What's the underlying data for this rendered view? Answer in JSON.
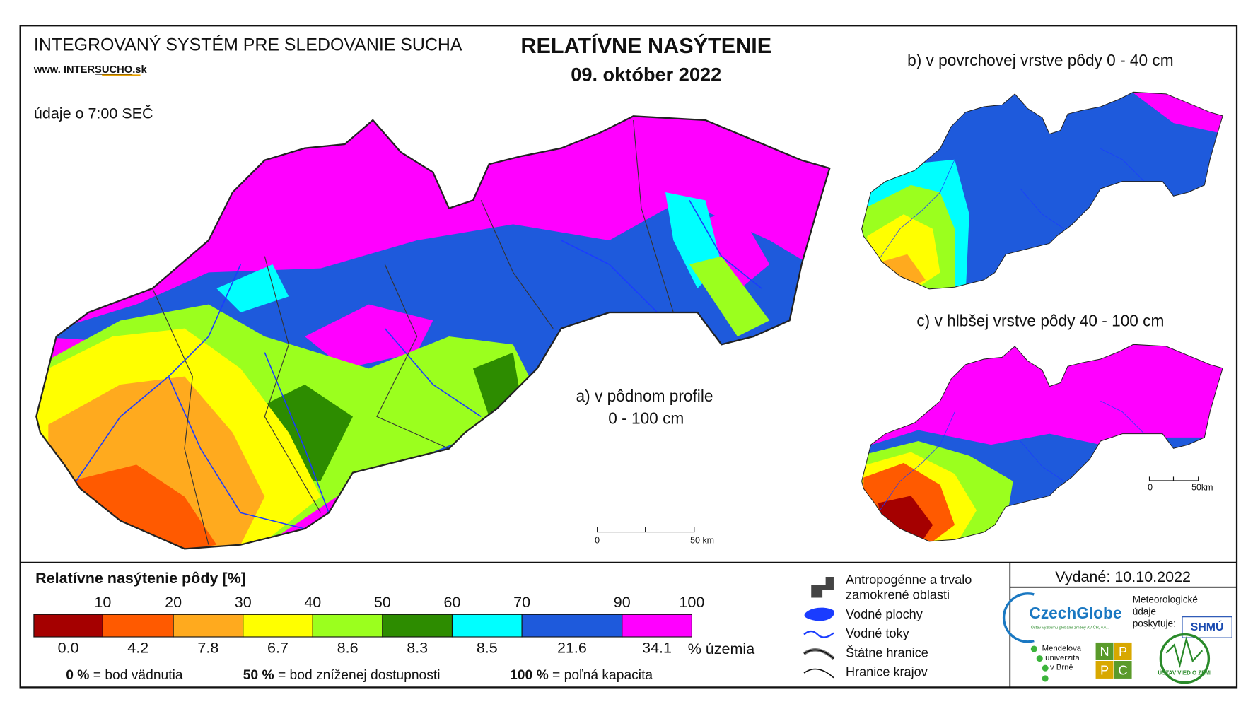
{
  "header": {
    "system": "INTEGROVANÝ SYSTÉM PRE SLEDOVANIE SUCHA",
    "web_prefix": "www. INTER",
    "web_mid": "SUCHO",
    "web_suffix": ".sk",
    "time_note": "údaje o 7:00 SEČ",
    "title": "RELATÍVNE NASÝTENIE",
    "date": "09. október 2022"
  },
  "maps": {
    "a_label_1": "a) v pôdnom profile",
    "a_label_2": "0 - 100 cm",
    "b_label": "b) v povrchovej vrstve pôdy 0 - 40 cm",
    "c_label": "c) v hlbšej vrstve pôdy 40 - 100 cm",
    "scale_a": [
      "0",
      "50 km"
    ],
    "scale_c": [
      "0",
      "50km"
    ]
  },
  "legend": {
    "title": "Relatívne nasýtenie pôdy [%]",
    "thresholds": [
      "10",
      "20",
      "30",
      "40",
      "50",
      "60",
      "70",
      "90",
      "100"
    ],
    "colors": [
      "#a50000",
      "#ff5a00",
      "#ffaa1e",
      "#ffff00",
      "#9bff1e",
      "#2d8c00",
      "#00ffff",
      "#1e5adc",
      "#ff00ff"
    ],
    "shares": [
      "0.0",
      "4.2",
      "7.8",
      "6.7",
      "8.6",
      "8.3",
      "8.5",
      "21.6",
      "34.1"
    ],
    "share_unit": "% územia",
    "notes": [
      {
        "value": "0 %",
        "text": "= bod vädnutia"
      },
      {
        "value": "50 %",
        "text": "= bod zníženej dostupnosti"
      },
      {
        "value": "100 %",
        "text": "= poľná kapacita"
      }
    ]
  },
  "symbols": [
    [
      "Antropogénne a trvalo",
      "zamokrené oblasti"
    ],
    [
      "Vodné plochy"
    ],
    [
      "Vodné toky"
    ],
    [
      "Štátne hranice"
    ],
    [
      "Hranice krajov"
    ]
  ],
  "footer": {
    "issued": "Vydané: 10.10.2022",
    "czechglobe": "CzechGlobe",
    "czechglobe_sub": "Ústav výzkumu globální změny AV ČR, v.v.i.",
    "meteo": [
      "Meteorologické",
      "údaje",
      "poskytuje:"
    ],
    "shmu": "SHMÚ",
    "mendel": [
      "Mendelova",
      "univerzita",
      "v Brně"
    ],
    "nppc": [
      "N",
      "P",
      "P",
      "C"
    ],
    "uvz": "ÚSTAV VIED O ZEMI"
  }
}
